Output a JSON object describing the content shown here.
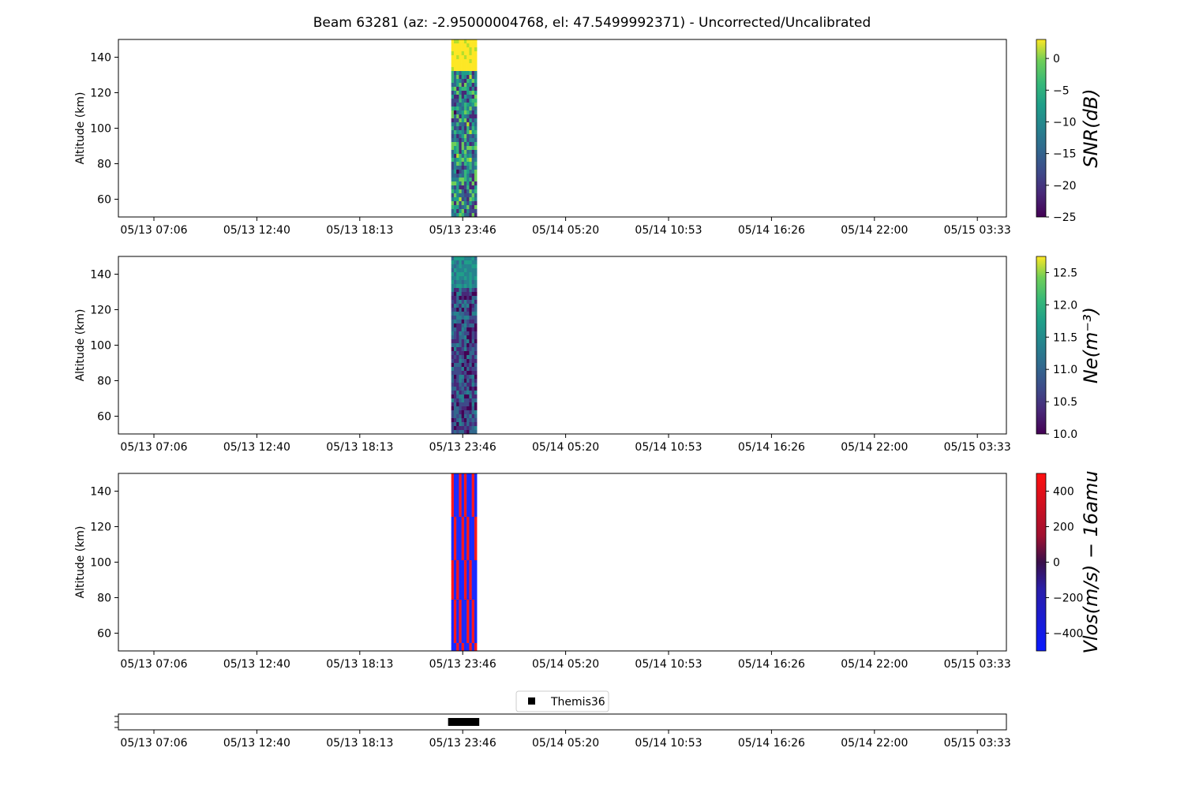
{
  "chart_data": [
    {
      "type": "heatmap",
      "title": "Beam 63281 (az: -2.95000004768, el: 47.5499992371) - Uncorrected/Uncalibrated",
      "ylabel": "Altitude (km)",
      "xticks": [
        "05/13 07:06",
        "05/13 12:40",
        "05/13 18:13",
        "05/13 23:46",
        "05/14 05:20",
        "05/14 10:53",
        "05/14 16:26",
        "05/14 22:00",
        "05/15 03:33"
      ],
      "yticks": [
        "60",
        "80",
        "100",
        "120",
        "140"
      ],
      "ylim": [
        50,
        150
      ],
      "colorbar_label": "SNR(dB)",
      "colorbar_ticks": [
        "0",
        "−5",
        "−10",
        "−15",
        "−20",
        "−25"
      ],
      "colorbar_range": [
        -25,
        3
      ],
      "colormap": "viridis",
      "data_time_span": [
        "05/13 23:09",
        "05/14 00:32"
      ]
    },
    {
      "type": "heatmap",
      "ylabel": "Altitude (km)",
      "xticks": [
        "05/13 07:06",
        "05/13 12:40",
        "05/13 18:13",
        "05/13 23:46",
        "05/14 05:20",
        "05/14 10:53",
        "05/14 16:26",
        "05/14 22:00",
        "05/15 03:33"
      ],
      "yticks": [
        "60",
        "80",
        "100",
        "120",
        "140"
      ],
      "ylim": [
        50,
        150
      ],
      "colorbar_label": "Ne(m⁻³)",
      "colorbar_ticks": [
        "12.5",
        "12.0",
        "11.5",
        "11.0",
        "10.5",
        "10.0"
      ],
      "colorbar_range": [
        10.0,
        12.75
      ],
      "colormap": "viridis",
      "data_time_span": [
        "05/13 23:09",
        "05/14 00:32"
      ]
    },
    {
      "type": "heatmap",
      "ylabel": "Altitude (km)",
      "xticks": [
        "05/13 07:06",
        "05/13 12:40",
        "05/13 18:13",
        "05/13 23:46",
        "05/14 05:20",
        "05/14 10:53",
        "05/14 16:26",
        "05/14 22:00",
        "05/15 03:33"
      ],
      "yticks": [
        "60",
        "80",
        "100",
        "120",
        "140"
      ],
      "ylim": [
        50,
        150
      ],
      "colorbar_label": "Vlos(m/s) − 16amu",
      "colorbar_ticks": [
        "400",
        "200",
        "0",
        "−200",
        "−400"
      ],
      "colorbar_range": [
        -500,
        500
      ],
      "colormap": "bwr-dark",
      "data_time_span": [
        "05/13 23:09",
        "05/14 00:32"
      ]
    },
    {
      "type": "scatter",
      "xticks": [
        "05/13 07:06",
        "05/13 12:40",
        "05/13 18:13",
        "05/13 23:46",
        "05/14 05:20",
        "05/14 10:53",
        "05/14 16:26",
        "05/14 22:00",
        "05/15 03:33"
      ],
      "series": [
        {
          "name": "Themis36",
          "marker": "square",
          "color": "#000000",
          "time_span": [
            "05/13 23:09",
            "05/14 00:32"
          ]
        }
      ],
      "legend": "top-center"
    }
  ],
  "colors": {
    "snr_high": "#fde725",
    "vlos_pos": "#ff1a1a",
    "vlos_neg": "#1a2bff"
  }
}
